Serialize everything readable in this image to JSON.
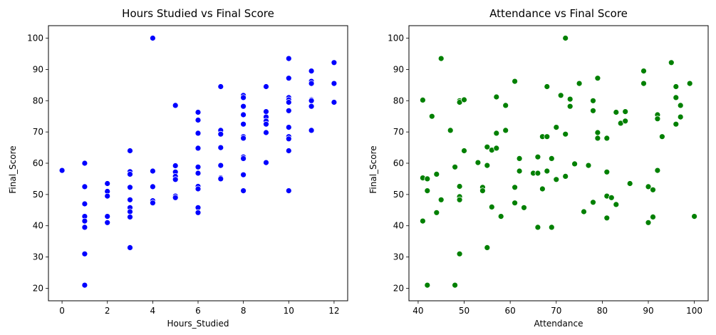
{
  "chart_data": [
    {
      "type": "scatter",
      "title": "Hours Studied vs Final Score",
      "xlabel": "Hours_Studied",
      "ylabel": "Final_Score",
      "xlim": [
        -0.6,
        12.6
      ],
      "ylim": [
        16,
        104
      ],
      "xticks": [
        0,
        2,
        4,
        6,
        8,
        10,
        12
      ],
      "yticks": [
        20,
        30,
        40,
        50,
        60,
        70,
        80,
        90,
        100
      ],
      "color": "#0000ff",
      "grid": false,
      "points": [
        [
          0,
          57.7
        ],
        [
          1,
          60
        ],
        [
          1,
          52.5
        ],
        [
          1,
          47
        ],
        [
          1,
          43
        ],
        [
          1,
          41.5
        ],
        [
          1,
          39.5
        ],
        [
          1,
          31
        ],
        [
          1,
          21
        ],
        [
          2,
          53.5
        ],
        [
          2,
          51
        ],
        [
          2,
          49.5
        ],
        [
          2,
          43
        ],
        [
          2,
          41
        ],
        [
          3,
          64
        ],
        [
          3,
          57.3
        ],
        [
          3,
          56.5
        ],
        [
          3,
          52.3
        ],
        [
          3,
          48.3
        ],
        [
          3,
          45.8
        ],
        [
          3,
          44.5
        ],
        [
          3,
          42.8
        ],
        [
          3,
          33
        ],
        [
          4,
          100
        ],
        [
          4,
          57.5
        ],
        [
          4,
          52.5
        ],
        [
          4,
          48
        ],
        [
          4,
          47.3
        ],
        [
          5,
          78.5
        ],
        [
          5,
          59.2
        ],
        [
          5,
          57.2
        ],
        [
          5,
          55.8
        ],
        [
          5,
          54.8
        ],
        [
          5,
          49.5
        ],
        [
          5,
          49
        ],
        [
          6,
          76.3
        ],
        [
          6,
          73.8
        ],
        [
          6,
          69.6
        ],
        [
          6,
          64.8
        ],
        [
          6,
          58.8
        ],
        [
          6,
          56.8
        ],
        [
          6,
          52.6
        ],
        [
          6,
          51.8
        ],
        [
          6,
          45.8
        ],
        [
          6,
          44.2
        ],
        [
          7,
          84.5
        ],
        [
          7,
          70.5
        ],
        [
          7,
          69.3
        ],
        [
          7,
          65
        ],
        [
          7,
          59.3
        ],
        [
          7,
          55.3
        ],
        [
          7,
          55
        ],
        [
          8,
          81.7
        ],
        [
          8,
          81
        ],
        [
          8,
          78.2
        ],
        [
          8,
          75.5
        ],
        [
          8,
          72.5
        ],
        [
          8,
          68.5
        ],
        [
          8,
          68
        ],
        [
          8,
          62
        ],
        [
          8,
          61.5
        ],
        [
          8,
          56.3
        ],
        [
          8,
          51.2
        ],
        [
          9,
          84.5
        ],
        [
          9,
          76.5
        ],
        [
          9,
          74.8
        ],
        [
          9,
          73.5
        ],
        [
          9,
          72.5
        ],
        [
          9,
          69.8
        ],
        [
          9,
          60.2
        ],
        [
          10,
          93.5
        ],
        [
          10,
          87.2
        ],
        [
          10,
          81
        ],
        [
          10,
          80.3
        ],
        [
          10,
          79.5
        ],
        [
          10,
          76.8
        ],
        [
          10,
          71.5
        ],
        [
          10,
          68.5
        ],
        [
          10,
          67.8
        ],
        [
          10,
          64
        ],
        [
          10,
          51.2
        ],
        [
          11,
          89.5
        ],
        [
          11,
          86.2
        ],
        [
          11,
          85.5
        ],
        [
          11,
          80.3
        ],
        [
          11,
          80
        ],
        [
          11,
          78.2
        ],
        [
          11,
          70.5
        ],
        [
          12,
          92.2
        ],
        [
          12,
          85.5
        ],
        [
          12,
          79.5
        ]
      ]
    },
    {
      "type": "scatter",
      "title": "Attendance vs Final Score",
      "xlabel": "Attendance",
      "ylabel": "Final_Score",
      "xlim": [
        38,
        103
      ],
      "ylim": [
        16,
        104
      ],
      "xticks": [
        40,
        50,
        60,
        70,
        80,
        90,
        100
      ],
      "yticks": [
        20,
        30,
        40,
        50,
        60,
        70,
        80,
        90,
        100
      ],
      "color": "#008000",
      "grid": false,
      "points": [
        [
          41,
          80.2
        ],
        [
          41,
          55.3
        ],
        [
          41,
          41.5
        ],
        [
          42,
          55
        ],
        [
          42,
          51.2
        ],
        [
          42,
          21
        ],
        [
          43,
          75
        ],
        [
          44,
          56.5
        ],
        [
          44,
          44.2
        ],
        [
          45,
          93.5
        ],
        [
          45,
          48.3
        ],
        [
          47,
          70.5
        ],
        [
          48,
          58.8
        ],
        [
          48,
          21
        ],
        [
          49,
          80
        ],
        [
          49,
          79.5
        ],
        [
          49,
          52.6
        ],
        [
          49,
          49.3
        ],
        [
          49,
          48.3
        ],
        [
          49,
          31
        ],
        [
          50,
          80.3
        ],
        [
          50,
          64
        ],
        [
          53,
          60.2
        ],
        [
          54,
          52.3
        ],
        [
          54,
          51.2
        ],
        [
          55,
          65.2
        ],
        [
          55,
          59.3
        ],
        [
          55,
          33
        ],
        [
          56,
          64.2
        ],
        [
          56,
          46
        ],
        [
          57,
          81.2
        ],
        [
          57,
          69.6
        ],
        [
          57,
          64.8
        ],
        [
          58,
          43
        ],
        [
          59,
          78.5
        ],
        [
          59,
          70.5
        ],
        [
          61,
          86.2
        ],
        [
          61,
          52.3
        ],
        [
          61,
          47.3
        ],
        [
          62,
          61.5
        ],
        [
          62,
          57.5
        ],
        [
          63,
          45.8
        ],
        [
          65,
          56.8
        ],
        [
          66,
          62
        ],
        [
          66,
          56.8
        ],
        [
          66,
          39.5
        ],
        [
          67,
          68.5
        ],
        [
          67,
          51.8
        ],
        [
          68,
          84.5
        ],
        [
          68,
          68.5
        ],
        [
          68,
          57.5
        ],
        [
          69,
          61.5
        ],
        [
          69,
          39.5
        ],
        [
          70,
          71.5
        ],
        [
          70,
          54.8
        ],
        [
          71,
          81.7
        ],
        [
          72,
          100
        ],
        [
          72,
          69.3
        ],
        [
          72,
          55.8
        ],
        [
          73,
          80.5
        ],
        [
          73,
          78.2
        ],
        [
          74,
          59.8
        ],
        [
          75,
          85.5
        ],
        [
          76,
          44.5
        ],
        [
          77,
          59.3
        ],
        [
          78,
          80
        ],
        [
          78,
          76.8
        ],
        [
          78,
          47.5
        ],
        [
          79,
          87.2
        ],
        [
          79,
          69.8
        ],
        [
          79,
          68
        ],
        [
          81,
          68
        ],
        [
          81,
          57.2
        ],
        [
          81,
          49.5
        ],
        [
          81,
          42.5
        ],
        [
          82,
          49
        ],
        [
          83,
          76.3
        ],
        [
          83,
          46.8
        ],
        [
          84,
          72.8
        ],
        [
          85,
          76.5
        ],
        [
          85,
          73.5
        ],
        [
          86,
          53.5
        ],
        [
          89,
          89.5
        ],
        [
          89,
          85.5
        ],
        [
          90,
          52.5
        ],
        [
          90,
          41
        ],
        [
          91,
          51.5
        ],
        [
          91,
          42.8
        ],
        [
          92,
          75.5
        ],
        [
          92,
          74.2
        ],
        [
          92,
          57.7
        ],
        [
          93,
          68.5
        ],
        [
          95,
          92.2
        ],
        [
          96,
          84.5
        ],
        [
          96,
          81
        ],
        [
          96,
          72.5
        ],
        [
          97,
          78.5
        ],
        [
          97,
          74.8
        ],
        [
          99,
          85.5
        ],
        [
          100,
          43
        ]
      ]
    }
  ]
}
